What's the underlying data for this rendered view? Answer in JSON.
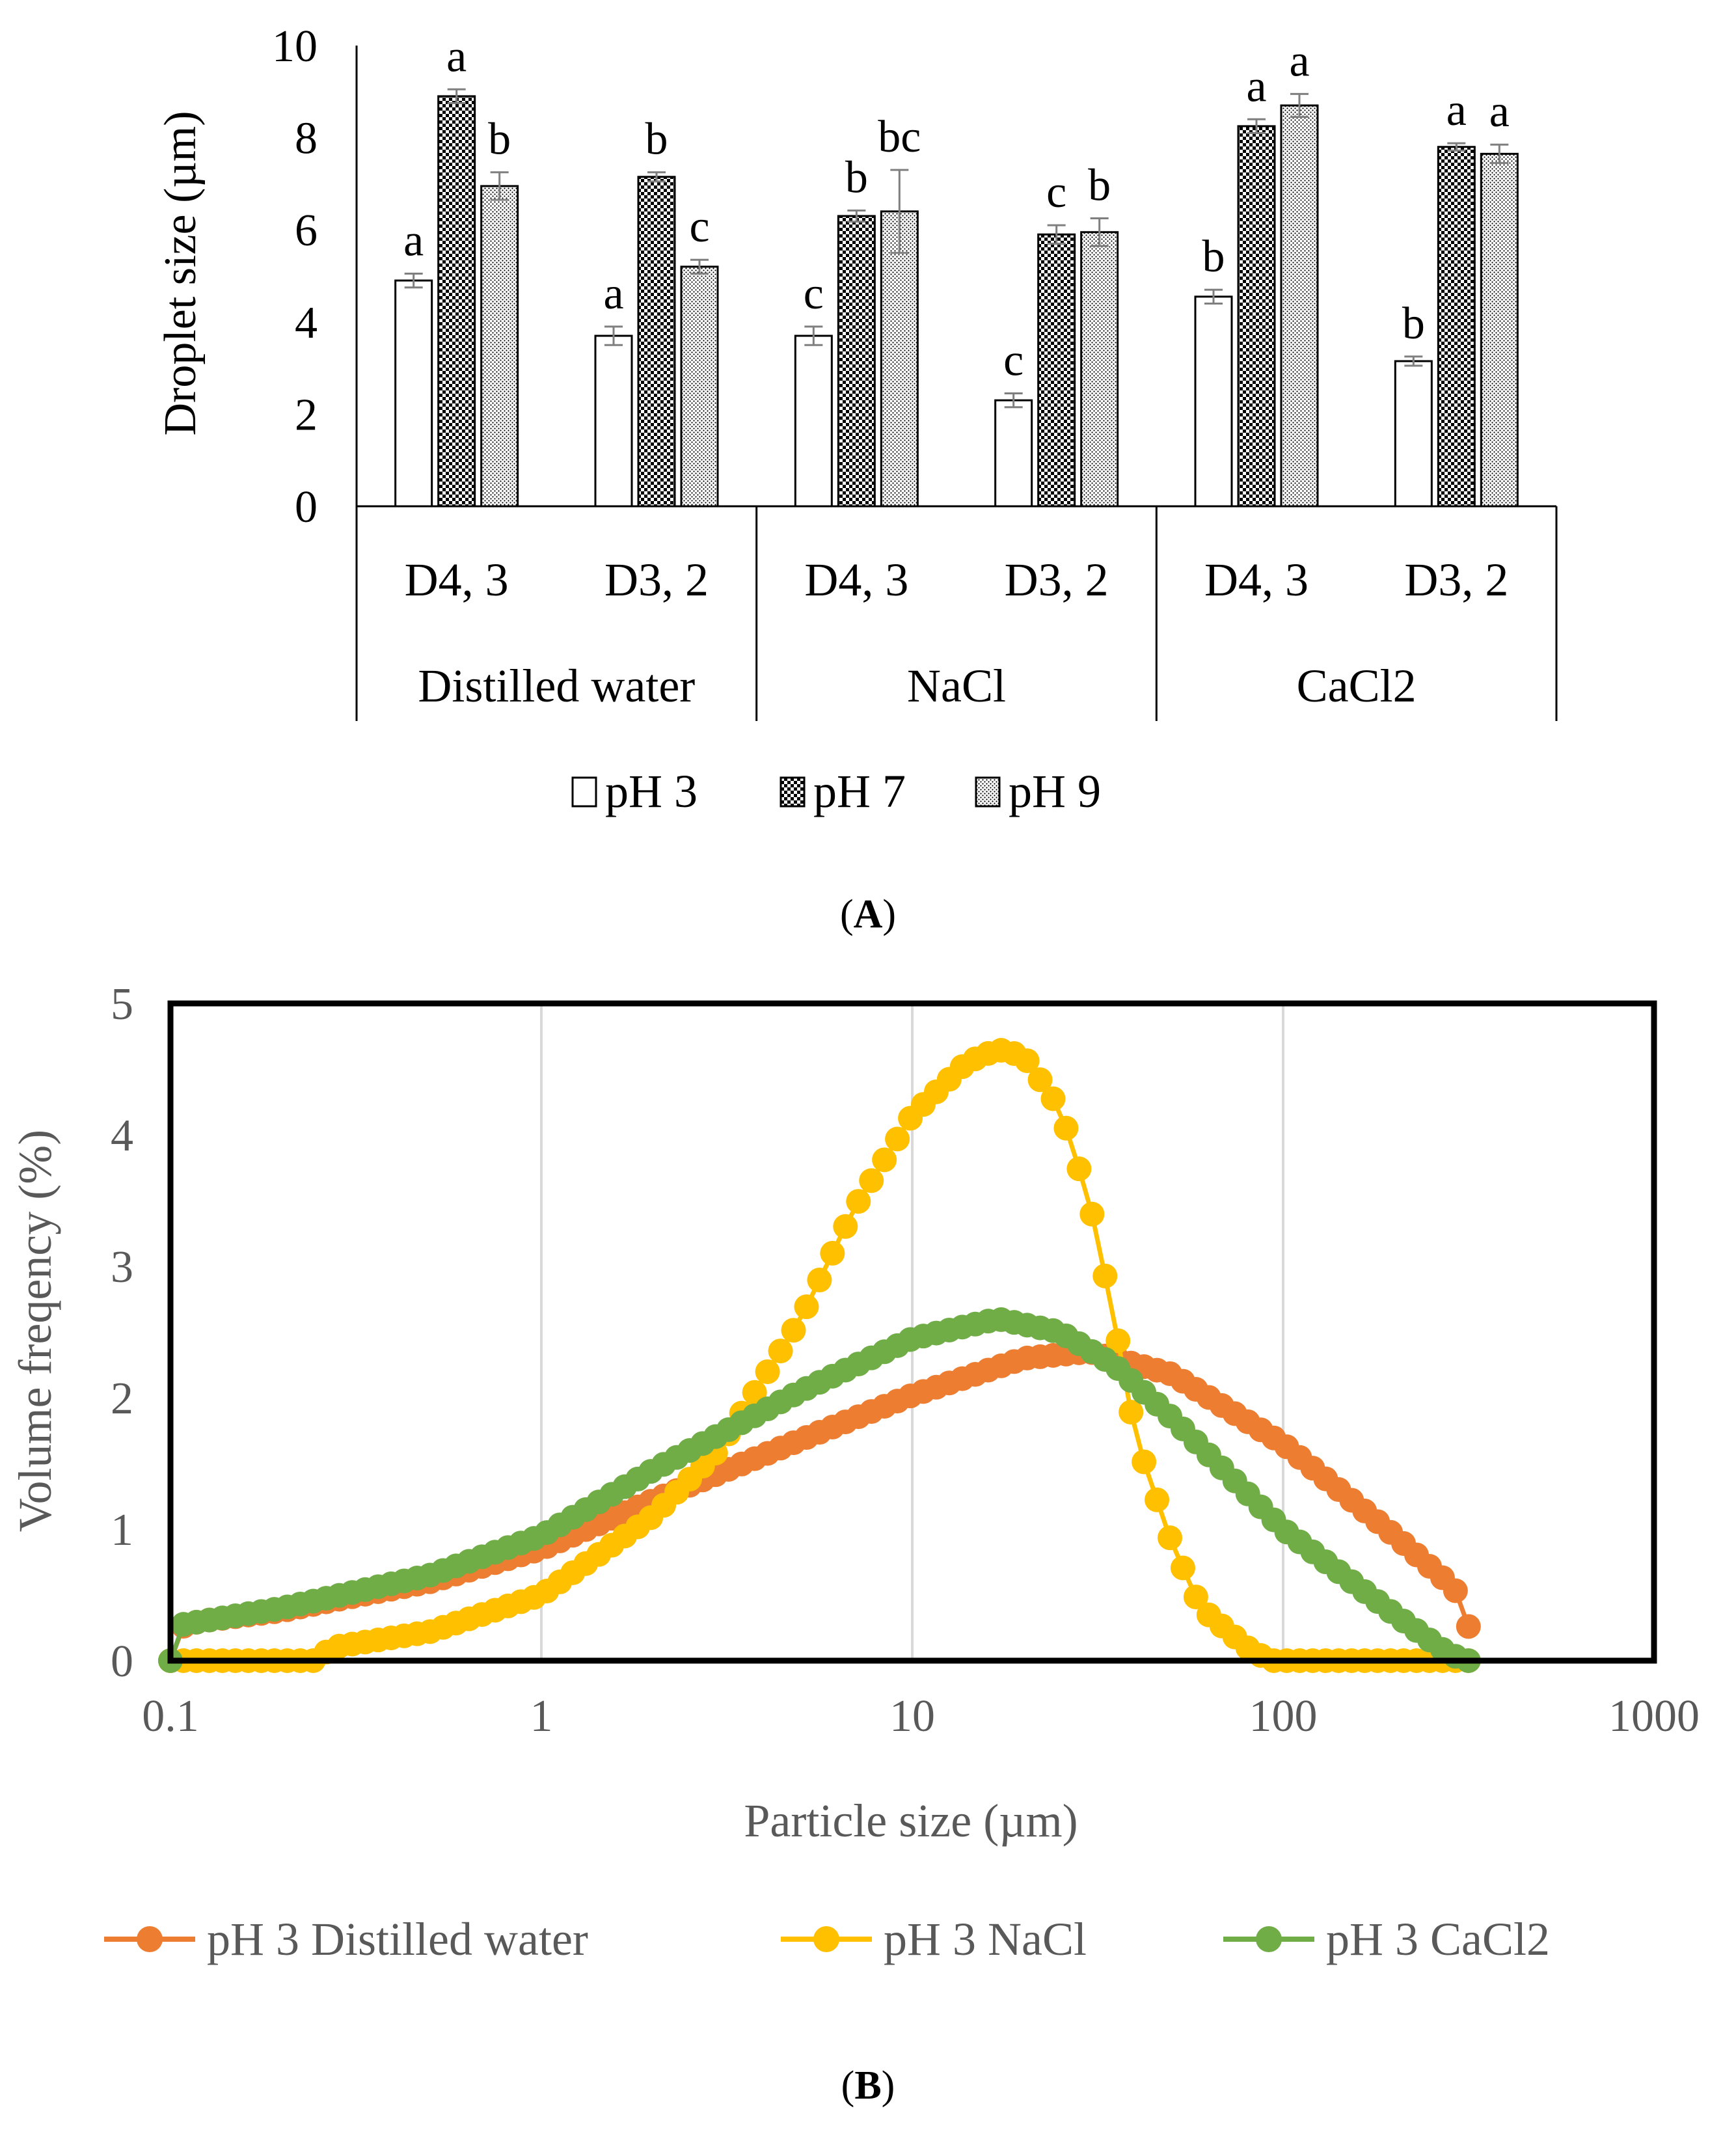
{
  "figure": {
    "panel_a_label": "A",
    "panel_b_label": "B"
  },
  "colors": {
    "axis": "#000000",
    "grid": "#d9d9d9",
    "text_gray": "#595959",
    "err": "#7f7f7f"
  },
  "chart_data": [
    {
      "type": "bar",
      "panel": "A",
      "ylabel": "Droplet size (µm)",
      "ylim": [
        0,
        10
      ],
      "yticks": [
        "0",
        "2",
        "4",
        "6",
        "8",
        "10"
      ],
      "groups": [
        "Distilled water",
        "NaCl",
        "CaCl2"
      ],
      "categories": [
        {
          "label": "D4, 3",
          "group": 0
        },
        {
          "label": "D3, 2",
          "group": 0
        },
        {
          "label": "D4, 3",
          "group": 1
        },
        {
          "label": "D3, 2",
          "group": 1
        },
        {
          "label": "D4, 3",
          "group": 2
        },
        {
          "label": "D3, 2",
          "group": 2
        }
      ],
      "series": [
        {
          "name": "pH 3",
          "pattern": "plain",
          "values": [
            4.9,
            3.7,
            3.7,
            2.3,
            4.55,
            3.15
          ],
          "errors": [
            0.15,
            0.2,
            0.2,
            0.15,
            0.15,
            0.1
          ],
          "labels": [
            "a",
            "a",
            "c",
            "c",
            "b",
            "b"
          ]
        },
        {
          "name": "pH 7",
          "pattern": "checker",
          "values": [
            8.9,
            7.15,
            6.3,
            5.9,
            8.25,
            7.8
          ],
          "errors": [
            0.15,
            0.1,
            0.12,
            0.2,
            0.15,
            0.08
          ],
          "labels": [
            "a",
            "b",
            "b",
            "c",
            "a",
            "a"
          ]
        },
        {
          "name": "pH 9",
          "pattern": "dots",
          "values": [
            6.95,
            5.2,
            6.4,
            5.95,
            8.7,
            7.65
          ],
          "errors": [
            0.3,
            0.15,
            0.9,
            0.3,
            0.25,
            0.2
          ],
          "labels": [
            "b",
            "c",
            "bc",
            "b",
            "a",
            "a"
          ]
        }
      ]
    },
    {
      "type": "line",
      "panel": "B",
      "xscale": "log",
      "xlim": [
        0.1,
        1000
      ],
      "ylim": [
        0,
        5
      ],
      "xticks": [
        "0.1",
        "1",
        "10",
        "100",
        "1000"
      ],
      "yticks": [
        "0",
        "1",
        "2",
        "3",
        "4",
        "5"
      ],
      "xlabel": "Particle size (µm)",
      "ylabel": "Volume freqency  (%)",
      "n_points": 101,
      "x_range": [
        0.1,
        316
      ],
      "series": [
        {
          "name": "pH 3 Distilled water",
          "color": "#ed7d31",
          "points": [
            [
              0.1,
              0
            ],
            [
              0.105,
              0.25
            ],
            [
              0.12,
              0.3
            ],
            [
              0.2,
              0.38
            ],
            [
              0.3,
              0.48
            ],
            [
              0.5,
              0.6
            ],
            [
              1,
              0.85
            ],
            [
              2,
              1.22
            ],
            [
              5,
              1.68
            ],
            [
              10,
              2.02
            ],
            [
              20,
              2.3
            ],
            [
              30,
              2.35
            ],
            [
              50,
              2.18
            ],
            [
              100,
              1.65
            ],
            [
              200,
              0.95
            ],
            [
              290,
              0.55
            ],
            [
              316,
              0.26
            ]
          ]
        },
        {
          "name": "pH 3 NaCl",
          "color": "#ffc000",
          "points": [
            [
              0.1,
              0
            ],
            [
              0.25,
              0
            ],
            [
              0.27,
              0.1
            ],
            [
              0.5,
              0.22
            ],
            [
              1,
              0.5
            ],
            [
              2,
              1.1
            ],
            [
              3,
              1.6
            ],
            [
              5,
              2.6
            ],
            [
              7,
              3.45
            ],
            [
              10,
              4.15
            ],
            [
              14,
              4.55
            ],
            [
              17,
              4.65
            ],
            [
              20,
              4.6
            ],
            [
              25,
              4.2
            ],
            [
              30,
              3.5
            ],
            [
              35,
              2.6
            ],
            [
              40,
              1.7
            ],
            [
              50,
              0.9
            ],
            [
              60,
              0.4
            ],
            [
              80,
              0.1
            ],
            [
              92,
              0
            ],
            [
              316,
              0
            ]
          ]
        },
        {
          "name": "pH 3 CaCl2",
          "color": "#70ad47",
          "points": [
            [
              0.1,
              0
            ],
            [
              0.105,
              0.27
            ],
            [
              0.2,
              0.4
            ],
            [
              0.5,
              0.65
            ],
            [
              1,
              0.95
            ],
            [
              2,
              1.45
            ],
            [
              5,
              2.05
            ],
            [
              10,
              2.45
            ],
            [
              17,
              2.6
            ],
            [
              25,
              2.5
            ],
            [
              35,
              2.25
            ],
            [
              50,
              1.85
            ],
            [
              100,
              1.0
            ],
            [
              200,
              0.35
            ],
            [
              280,
              0.05
            ],
            [
              316,
              0
            ]
          ]
        }
      ]
    }
  ]
}
